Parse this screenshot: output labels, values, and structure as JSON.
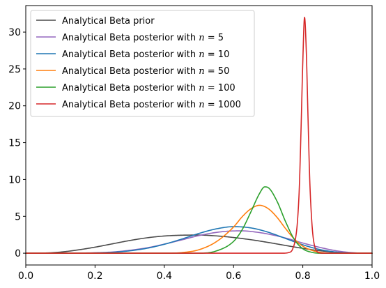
{
  "chart_data": {
    "type": "line",
    "title": "",
    "xlabel": "",
    "ylabel": "",
    "xlim": [
      0.0,
      1.0
    ],
    "ylim": [
      -1.6,
      33.6
    ],
    "x_ticks": [
      0.0,
      0.2,
      0.4,
      0.6,
      0.8,
      1.0
    ],
    "x_tick_labels": [
      "0.0",
      "0.2",
      "0.4",
      "0.6",
      "0.8",
      "1.0"
    ],
    "y_ticks": [
      0,
      5,
      10,
      15,
      20,
      25,
      30
    ],
    "y_tick_labels": [
      "0",
      "5",
      "10",
      "15",
      "20",
      "25",
      "30"
    ],
    "grid": false,
    "legend_position": "top-left",
    "series": [
      {
        "name": "Analytical Beta prior",
        "legend_main": "Analytical Beta posterior",
        "legend_prefix": "Analytical Beta prior",
        "legend_n": "",
        "legend_eq": "",
        "color": "#4a4a4a",
        "x": [
          0.0,
          0.05,
          0.1,
          0.15,
          0.2,
          0.25,
          0.3,
          0.35,
          0.4,
          0.45,
          0.5,
          0.55,
          0.6,
          0.65,
          0.7,
          0.75,
          0.8,
          0.85,
          0.9,
          0.95,
          1.0
        ],
        "values": [
          0.0,
          0.02,
          0.15,
          0.44,
          0.82,
          1.27,
          1.72,
          2.09,
          2.33,
          2.44,
          2.46,
          2.35,
          2.13,
          1.83,
          1.46,
          1.05,
          0.66,
          0.33,
          0.12,
          0.02,
          0.0
        ]
      },
      {
        "name": "Analytical Beta posterior with n = 5",
        "legend_prefix": "Analytical Beta posterior with ",
        "legend_n": "n",
        "legend_eq": " = 5",
        "color": "#9467bd",
        "x": [
          0.0,
          0.1,
          0.2,
          0.25,
          0.3,
          0.35,
          0.4,
          0.45,
          0.5,
          0.55,
          0.6,
          0.625,
          0.65,
          0.7,
          0.75,
          0.8,
          0.85,
          0.9,
          0.95,
          1.0
        ],
        "values": [
          0.0,
          0.0,
          0.06,
          0.16,
          0.39,
          0.73,
          1.23,
          1.8,
          2.39,
          2.82,
          3.02,
          3.03,
          2.95,
          2.6,
          2.06,
          1.38,
          0.78,
          0.3,
          0.05,
          0.0
        ]
      },
      {
        "name": "Analytical Beta posterior with n = 10",
        "legend_prefix": "Analytical Beta posterior with ",
        "legend_n": "n",
        "legend_eq": " = 10",
        "color": "#1f77b4",
        "x": [
          0.0,
          0.1,
          0.2,
          0.25,
          0.3,
          0.35,
          0.4,
          0.45,
          0.5,
          0.55,
          0.6,
          0.65,
          0.7,
          0.75,
          0.8,
          0.85,
          0.9,
          0.95,
          1.0
        ],
        "values": [
          0.0,
          0.0,
          0.04,
          0.12,
          0.32,
          0.67,
          1.21,
          1.91,
          2.68,
          3.3,
          3.6,
          3.43,
          2.85,
          2.0,
          1.14,
          0.49,
          0.14,
          0.02,
          0.0
        ]
      },
      {
        "name": "Analytical Beta posterior with n = 50",
        "legend_prefix": "Analytical Beta posterior with ",
        "legend_n": "n",
        "legend_eq": " = 50",
        "color": "#ff7f0e",
        "x": [
          0.0,
          0.4,
          0.45,
          0.5,
          0.55,
          0.6,
          0.625,
          0.65,
          0.675,
          0.7,
          0.725,
          0.75,
          0.775,
          0.8,
          0.85,
          0.9,
          1.0
        ],
        "values": [
          0.0,
          0.0,
          0.08,
          0.47,
          1.55,
          3.55,
          4.95,
          6.02,
          6.5,
          6.05,
          4.9,
          3.35,
          1.95,
          0.95,
          0.12,
          0.0,
          0.0
        ]
      },
      {
        "name": "Analytical Beta posterior with n = 100",
        "legend_prefix": "Analytical Beta posterior with ",
        "legend_n": "n",
        "legend_eq": " = 100",
        "color": "#2ca02c",
        "x": [
          0.0,
          0.5,
          0.55,
          0.6,
          0.625,
          0.65,
          0.675,
          0.69,
          0.7,
          0.725,
          0.75,
          0.775,
          0.8,
          0.825,
          0.85,
          0.9,
          1.0
        ],
        "values": [
          0.0,
          0.0,
          0.3,
          1.6,
          3.2,
          5.6,
          8.1,
          9.0,
          8.9,
          7.1,
          4.3,
          1.9,
          0.6,
          0.13,
          0.0,
          0.0,
          0.0
        ]
      },
      {
        "name": "Analytical Beta posterior with n = 1000",
        "legend_prefix": "Analytical Beta posterior with ",
        "legend_n": "n",
        "legend_eq": " = 1000",
        "color": "#d62728",
        "x": [
          0.0,
          0.74,
          0.76,
          0.77,
          0.78,
          0.785,
          0.79,
          0.795,
          0.8,
          0.805,
          0.81,
          0.815,
          0.82,
          0.825,
          0.83,
          0.84,
          0.85,
          0.86,
          1.0
        ],
        "values": [
          0.0,
          0.0,
          0.1,
          0.5,
          2.3,
          4.6,
          9.0,
          17.0,
          26.0,
          32.0,
          27.5,
          18.5,
          10.0,
          5.0,
          2.1,
          0.3,
          0.03,
          0.0,
          0.0
        ]
      }
    ]
  }
}
